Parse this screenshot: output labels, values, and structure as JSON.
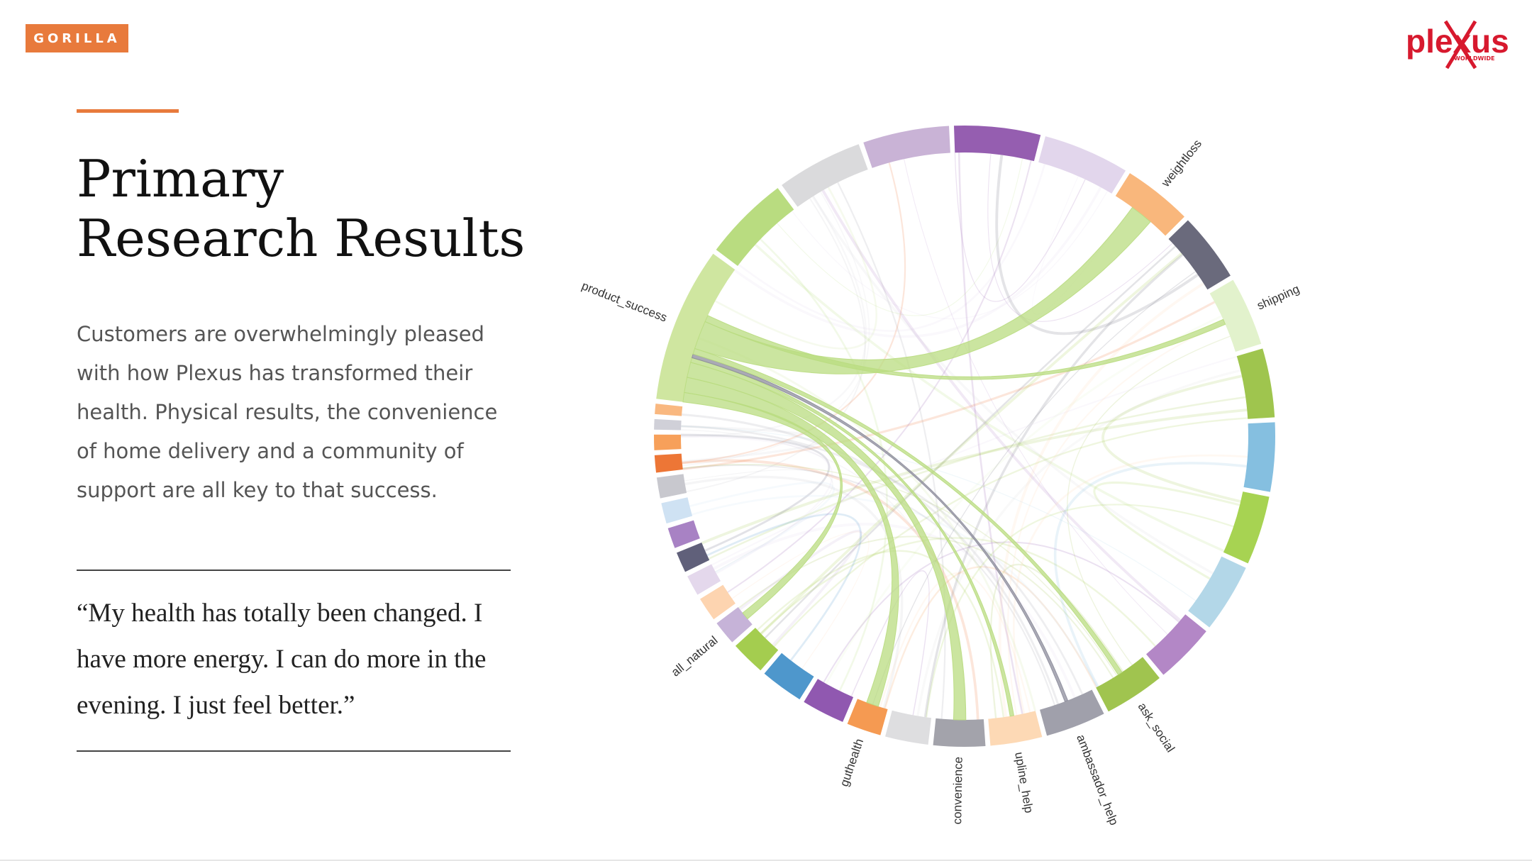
{
  "brand": {
    "badge": "GORILLA",
    "logo_text": "plexus",
    "logo_subtext": "WORLDWIDE"
  },
  "slide": {
    "title_line1": "Primary",
    "title_line2": "Research Results",
    "body": "Customers are overwhelmingly pleased with how Plexus has transformed their health. Physical results, the convenience of home delivery and a community of support are all key to that success.",
    "quote": "“My health has totally been changed. I have more energy. I can do more in the evening. I just feel better.”"
  },
  "colors": {
    "accent": "#e87a3c",
    "logo_red": "#d7192e",
    "chord_green": "#b5d97a"
  },
  "chart_data": {
    "type": "chord",
    "title": "",
    "groups": [
      {
        "name": "product_success",
        "color": "#cfe6a0",
        "share": 9.0
      },
      {
        "name": "",
        "color": "#b9dc80",
        "share": 5.0
      },
      {
        "name": "",
        "color": "#dadadc",
        "share": 5.0
      },
      {
        "name": "",
        "color": "#c9b3d6",
        "share": 5.0
      },
      {
        "name": "",
        "color": "#955eb0",
        "share": 5.0
      },
      {
        "name": "",
        "color": "#e2d6ec",
        "share": 5.0
      },
      {
        "name": "weightloss",
        "color": "#f9b77c",
        "share": 4.0
      },
      {
        "name": "",
        "color": "#6a6a7c",
        "share": 4.0
      },
      {
        "name": "shipping",
        "color": "#e2f2cc",
        "share": 4.0
      },
      {
        "name": "",
        "color": "#9fc54e",
        "share": 4.0
      },
      {
        "name": "",
        "color": "#85bfe0",
        "share": 4.0
      },
      {
        "name": "",
        "color": "#a7d352",
        "share": 4.0
      },
      {
        "name": "",
        "color": "#b3d7e8",
        "share": 4.0
      },
      {
        "name": "",
        "color": "#b387c6",
        "share": 3.5
      },
      {
        "name": "ask_social",
        "color": "#a0c44f",
        "share": 3.5
      },
      {
        "name": "ambassador_help",
        "color": "#a0a0ab",
        "share": 3.5
      },
      {
        "name": "upline_help",
        "color": "#fdd9b5",
        "share": 3.0
      },
      {
        "name": "convenience",
        "color": "#a3a3ab",
        "share": 3.0
      },
      {
        "name": "",
        "color": "#dedee0",
        "share": 2.5
      },
      {
        "name": "guthealth",
        "color": "#f59a52",
        "share": 2.0
      },
      {
        "name": "",
        "color": "#9058b0",
        "share": 2.5
      },
      {
        "name": "",
        "color": "#4e97cc",
        "share": 2.5
      },
      {
        "name": "",
        "color": "#a4cd4f",
        "share": 2.0
      },
      {
        "name": "all_natural",
        "color": "#c6b3d8",
        "share": 1.4
      },
      {
        "name": "",
        "color": "#fdd4b0",
        "share": 1.4
      },
      {
        "name": "",
        "color": "#e4d8ec",
        "share": 1.2
      },
      {
        "name": "",
        "color": "#60607a",
        "share": 1.2
      },
      {
        "name": "",
        "color": "#a882c4",
        "share": 1.2
      },
      {
        "name": "",
        "color": "#cfe2f3",
        "share": 1.2
      },
      {
        "name": "",
        "color": "#c8c8ce",
        "share": 1.2
      },
      {
        "name": "",
        "color": "#ed7636",
        "share": 1.0
      },
      {
        "name": "",
        "color": "#f7a05a",
        "share": 0.9
      },
      {
        "name": "",
        "color": "#d0d0d8",
        "share": 0.6
      },
      {
        "name": "",
        "color": "#f9b880",
        "share": 0.6
      }
    ],
    "links": [
      {
        "source": "product_success",
        "target": "all_natural",
        "weight": 1.0,
        "color": "#b9dc80"
      },
      {
        "source": "product_success",
        "target": "guthealth",
        "weight": 1.6,
        "color": "#b9dc80"
      },
      {
        "source": "product_success",
        "target": "convenience",
        "weight": 1.6,
        "color": "#b9dc80"
      },
      {
        "source": "product_success",
        "target": "upline_help",
        "weight": 0.5,
        "color": "#b9dc80"
      },
      {
        "source": "product_success",
        "target": "ambassador_help",
        "weight": 0.4,
        "color": "#8d8d9c"
      },
      {
        "source": "product_success",
        "target": "ask_social",
        "weight": 0.6,
        "color": "#b9dc80"
      },
      {
        "source": "product_success",
        "target": "weightloss",
        "weight": 3.0,
        "color": "#b9dc80"
      },
      {
        "source": "product_success",
        "target": "shipping",
        "weight": 0.7,
        "color": "#b9dc80"
      }
    ],
    "background_links": 70
  }
}
